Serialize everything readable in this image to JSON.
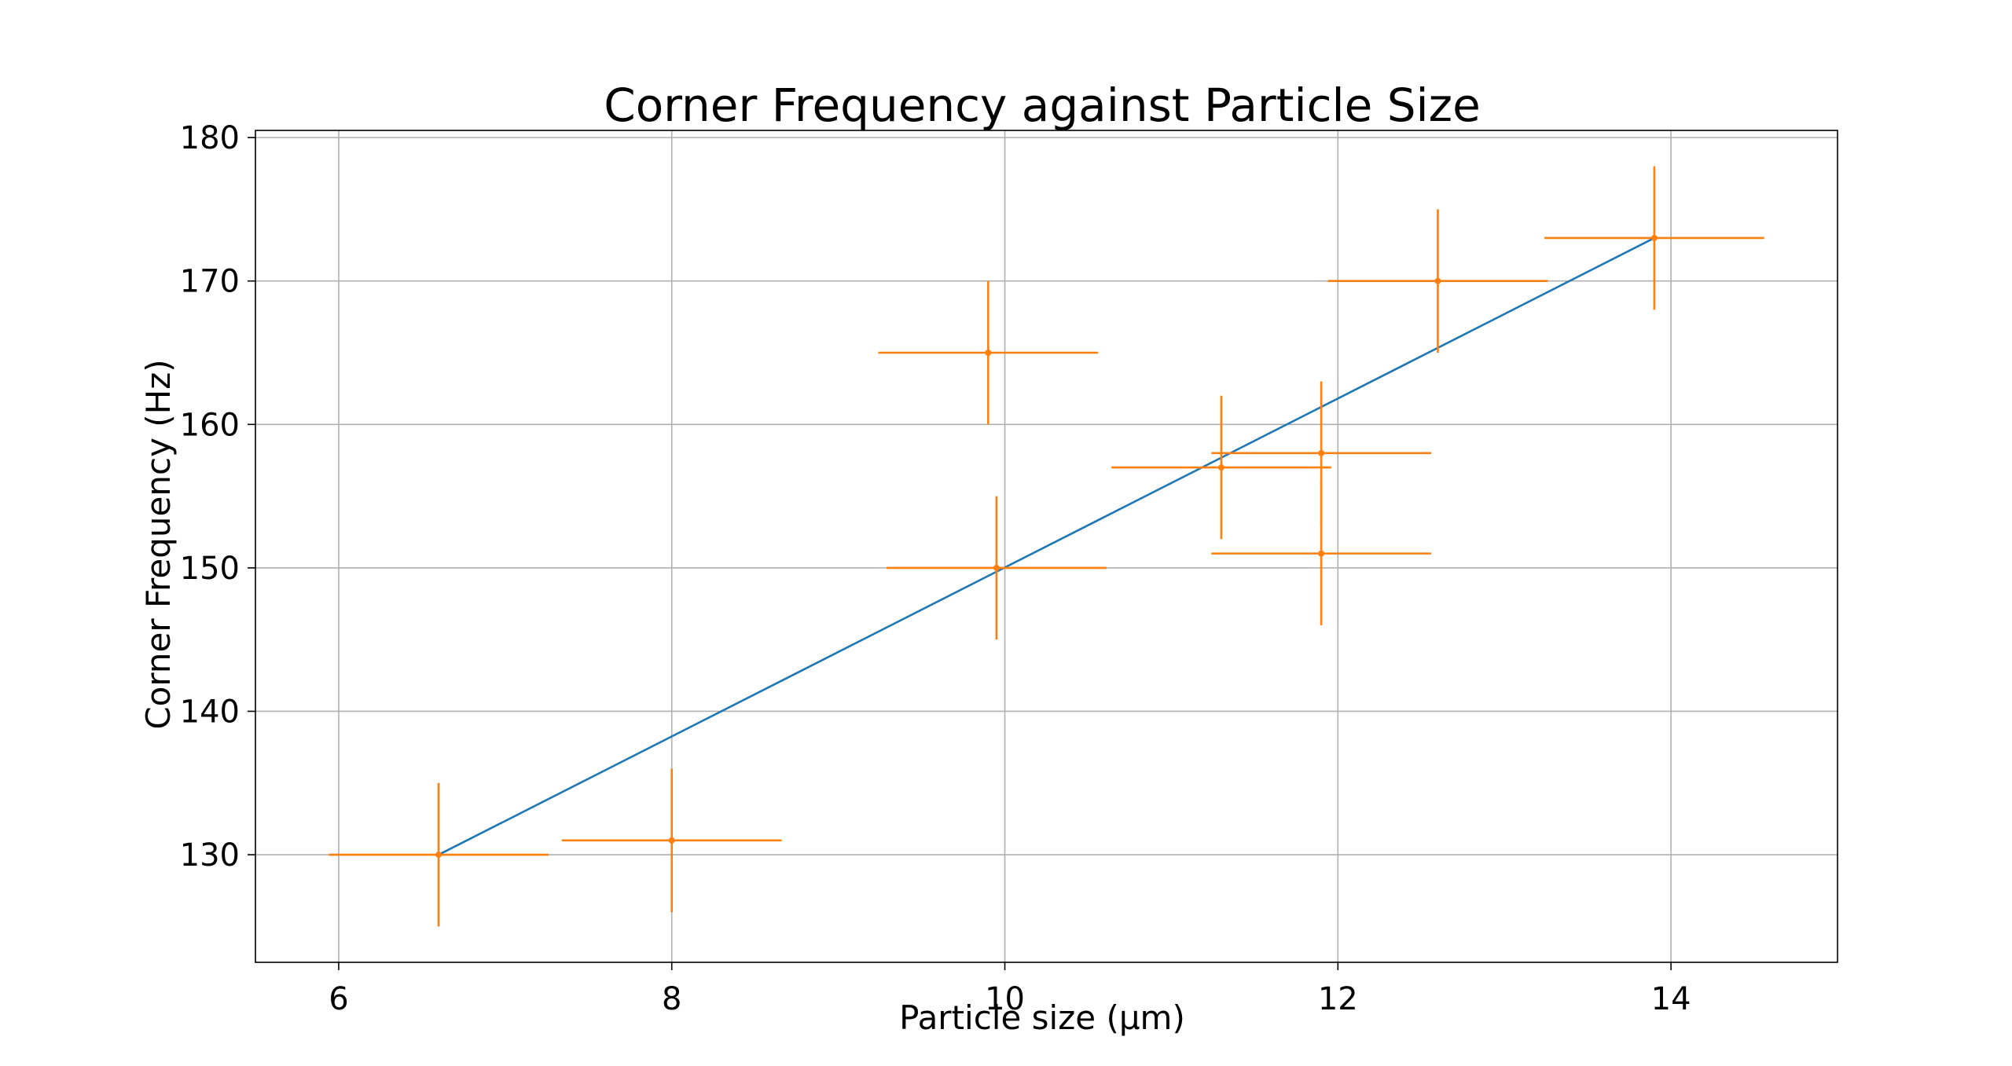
{
  "colors": {
    "fit_line": "#1f77b4",
    "data_points": "#ff7f0e",
    "grid": "#b0b0b0"
  },
  "chart_data": {
    "type": "scatter",
    "title": "Corner Frequency against Particle Size",
    "xlabel": "Particle size (μm)",
    "ylabel": "Corner Frequency (Hz)",
    "xlim": [
      5.5,
      15.0
    ],
    "ylim": [
      122.5,
      180.5
    ],
    "xticks": [
      6,
      8,
      10,
      12,
      14
    ],
    "yticks": [
      130,
      140,
      150,
      160,
      170,
      180
    ],
    "grid": true,
    "series": [
      {
        "type": "errorbar",
        "points": [
          {
            "x": 6.6,
            "y": 130,
            "xerr": 0.66,
            "yerr": 5
          },
          {
            "x": 8.0,
            "y": 131,
            "xerr": 0.66,
            "yerr": 5
          },
          {
            "x": 9.9,
            "y": 165,
            "xerr": 0.66,
            "yerr": 5
          },
          {
            "x": 9.95,
            "y": 150,
            "xerr": 0.66,
            "yerr": 5
          },
          {
            "x": 11.3,
            "y": 157,
            "xerr": 0.66,
            "yerr": 5
          },
          {
            "x": 11.9,
            "y": 158,
            "xerr": 0.66,
            "yerr": 5
          },
          {
            "x": 11.9,
            "y": 151,
            "xerr": 0.66,
            "yerr": 5
          },
          {
            "x": 12.6,
            "y": 170,
            "xerr": 0.66,
            "yerr": 5
          },
          {
            "x": 13.9,
            "y": 173,
            "xerr": 0.66,
            "yerr": 5
          }
        ]
      },
      {
        "type": "line",
        "x": [
          6.6,
          13.9
        ],
        "y": [
          130,
          173
        ]
      }
    ]
  }
}
